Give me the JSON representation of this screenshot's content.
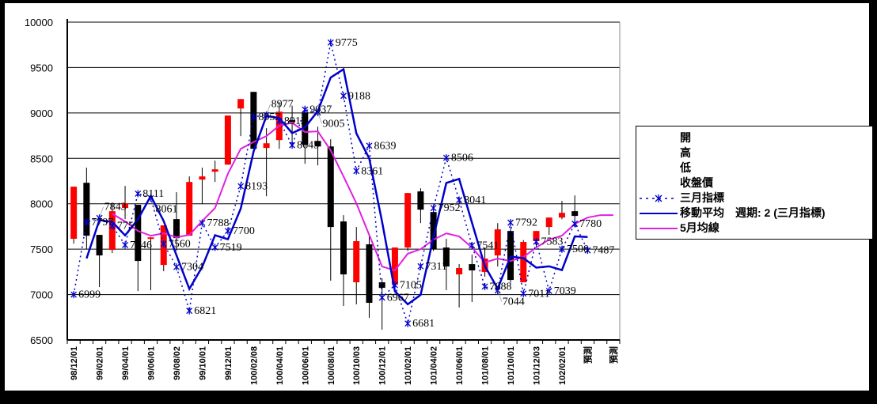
{
  "chart_data": {
    "type": "candlestick",
    "y_ticks": [
      "10000",
      "9500",
      "9000",
      "8500",
      "8000",
      "7500",
      "7000",
      "6500"
    ],
    "ylim": [
      6500,
      10000
    ],
    "grid": true,
    "legend_position": "right",
    "categories": [
      "98/12/01",
      "",
      "99/02/01",
      "",
      "99/04/01",
      "",
      "99/06/01",
      "",
      "99/08/02",
      "",
      "99/10/01",
      "",
      "99/12/01",
      "",
      "100/02/08",
      "",
      "100/04/01",
      "",
      "100/06/01",
      "",
      "100/08/01",
      "",
      "100/10/03",
      "",
      "100/12/01",
      "",
      "101/02/01",
      "",
      "101/04/02",
      "",
      "101/06/01",
      "",
      "101/08/01",
      "",
      "101/10/01",
      "",
      "101/12/03",
      "",
      "102/02/01",
      "",
      "預測",
      "",
      "預測"
    ],
    "candles": [
      {
        "i": 0,
        "open": 7614,
        "high": 8188,
        "low": 7561,
        "close": 8188
      },
      {
        "i": 1,
        "open": 8231,
        "high": 8397,
        "low": 7500,
        "close": 7648
      },
      {
        "i": 2,
        "open": 7657,
        "high": 7657,
        "low": 7083,
        "close": 7431
      },
      {
        "i": 3,
        "open": 7492,
        "high": 8005,
        "low": 7457,
        "close": 7918
      },
      {
        "i": 4,
        "open": 7953,
        "high": 8197,
        "low": 7831,
        "close": 8005
      },
      {
        "i": 5,
        "open": 7988,
        "high": 7988,
        "low": 7039,
        "close": 7370
      },
      {
        "i": 6,
        "open": 7620,
        "high": 7631,
        "low": 7048,
        "close": 7630
      },
      {
        "i": 7,
        "open": 7326,
        "high": 7762,
        "low": 7257,
        "close": 7762
      },
      {
        "i": 8,
        "open": 7831,
        "high": 8127,
        "low": 7483,
        "close": 7622
      },
      {
        "i": 9,
        "open": 7648,
        "high": 8301,
        "low": 7648,
        "close": 8240
      },
      {
        "i": 10,
        "open": 8266,
        "high": 8397,
        "low": 7996,
        "close": 8301
      },
      {
        "i": 11,
        "open": 8353,
        "high": 8475,
        "low": 8240,
        "close": 8379
      },
      {
        "i": 12,
        "open": 8431,
        "high": 8971,
        "low": 8431,
        "close": 8971
      },
      {
        "i": 13,
        "open": 9049,
        "high": 9153,
        "low": 8745,
        "close": 9153
      },
      {
        "i": 14,
        "open": 9232,
        "high": 9232,
        "low": 8605,
        "close": 8605
      },
      {
        "i": 15,
        "open": 8614,
        "high": 8832,
        "low": 8083,
        "close": 8666
      },
      {
        "i": 16,
        "open": 8701,
        "high": 9119,
        "low": 8605,
        "close": 9014
      },
      {
        "i": 17,
        "open": 8920,
        "high": 9080,
        "low": 8614,
        "close": 8900
      },
      {
        "i": 18,
        "open": 9006,
        "high": 9080,
        "low": 8440,
        "close": 8649
      },
      {
        "i": 19,
        "open": 8692,
        "high": 8849,
        "low": 8423,
        "close": 8631
      },
      {
        "i": 20,
        "open": 8631,
        "high": 8710,
        "low": 7153,
        "close": 7744
      },
      {
        "i": 21,
        "open": 7805,
        "high": 7875,
        "low": 6874,
        "close": 7222
      },
      {
        "i": 22,
        "open": 7135,
        "high": 7744,
        "low": 6892,
        "close": 7588
      },
      {
        "i": 23,
        "open": 7553,
        "high": 7650,
        "low": 6744,
        "close": 6909
      },
      {
        "i": 24,
        "open": 7135,
        "high": 7179,
        "low": 6613,
        "close": 7074
      },
      {
        "i": 25,
        "open": 7109,
        "high": 7518,
        "low": 7050,
        "close": 7518
      },
      {
        "i": 26,
        "open": 7518,
        "high": 8118,
        "low": 7480,
        "close": 8118
      },
      {
        "i": 27,
        "open": 8136,
        "high": 8170,
        "low": 7787,
        "close": 7935
      },
      {
        "i": 28,
        "open": 7909,
        "high": 7950,
        "low": 7480,
        "close": 7500
      },
      {
        "i": 29,
        "open": 7518,
        "high": 7614,
        "low": 7048,
        "close": 7309
      },
      {
        "i": 30,
        "open": 7222,
        "high": 7335,
        "low": 6857,
        "close": 7292
      },
      {
        "i": 31,
        "open": 7335,
        "high": 7440,
        "low": 6918,
        "close": 7266
      },
      {
        "i": 32,
        "open": 7248,
        "high": 7518,
        "low": 7196,
        "close": 7396
      },
      {
        "i": 33,
        "open": 7431,
        "high": 7787,
        "low": 7309,
        "close": 7718
      },
      {
        "i": 34,
        "open": 7700,
        "high": 7730,
        "low": 7130,
        "close": 7161
      },
      {
        "i": 35,
        "open": 7135,
        "high": 7600,
        "low": 7135,
        "close": 7579
      },
      {
        "i": 36,
        "open": 7588,
        "high": 7700,
        "low": 7518,
        "close": 7700
      },
      {
        "i": 37,
        "open": 7744,
        "high": 7848,
        "low": 7657,
        "close": 7848
      },
      {
        "i": 38,
        "open": 7848,
        "high": 8031,
        "low": 7830,
        "close": 7900
      },
      {
        "i": 39,
        "open": 7918,
        "high": 8092,
        "low": 7805,
        "close": 7866
      }
    ],
    "series": [
      {
        "name": "三月指標",
        "color": "#0000cc",
        "style": "dotted-asterisk",
        "labeled": true,
        "values": [
          6999,
          7797,
          7843,
          7757,
          7546,
          8111,
          8061,
          7560,
          7304,
          6821,
          7788,
          7519,
          7700,
          8193,
          8957,
          8977,
          8912,
          8645,
          9037,
          9005,
          9775,
          9188,
          8361,
          8639,
          6967,
          7105,
          6681,
          7311,
          7952,
          8506,
          8041,
          7541,
          7088,
          7044,
          7792,
          7011,
          7583,
          7039,
          7500,
          7780,
          7487,
          null,
          null
        ]
      },
      {
        "name": "移動平均",
        "color": "#0000cc",
        "style": "solid",
        "period": 2,
        "source": "三月指標"
      },
      {
        "name": "5月均線",
        "color": "#e020e0",
        "style": "solid",
        "values": [
          null,
          null,
          null,
          7890,
          7805,
          7700,
          7648,
          7674,
          7631,
          7657,
          7810,
          7953,
          8330,
          8605,
          8680,
          8745,
          8860,
          8892,
          8790,
          8797,
          8588,
          8301,
          8005,
          7657,
          7309,
          7266,
          7450,
          7500,
          7605,
          7674,
          7640,
          7518,
          7353,
          7396,
          7370,
          7413,
          7518,
          7605,
          7648,
          7779,
          7848,
          7875,
          7875
        ]
      }
    ],
    "up_color": "#ff0000",
    "down_color": "#000000"
  },
  "legend": {
    "items": [
      {
        "label": "開"
      },
      {
        "label": "高"
      },
      {
        "label": "低"
      },
      {
        "label": "收盤價"
      },
      {
        "label": "三月指標"
      },
      {
        "label": "移動平均　週期: 2 (三月指標)"
      },
      {
        "label": "5月均線"
      }
    ]
  }
}
